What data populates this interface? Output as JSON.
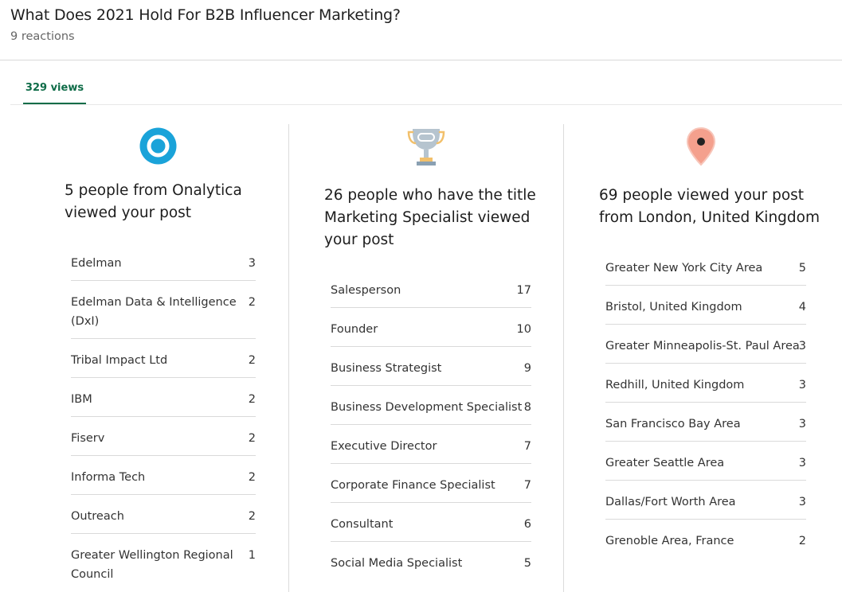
{
  "post": {
    "title": "What Does 2021 Hold For B2B Influencer Marketing?",
    "reactions": "9 reactions"
  },
  "tabs": [
    {
      "label": "329 views",
      "active": true
    }
  ],
  "colors": {
    "accent": "#0f6c48",
    "company_icon": "#1aa3d9",
    "title_icon": "#b6c4cf",
    "location_icon": "#f4a08d"
  },
  "columns": {
    "company": {
      "icon": "company-ring-icon",
      "heading": "5 people from Onalytica viewed your post",
      "heading_lines": [
        "5 people from Onalytica",
        "viewed your post"
      ],
      "rows": [
        {
          "name": "Edelman",
          "count": "3"
        },
        {
          "name": "Edelman Data & Intelligence (DxI)",
          "name_lines": [
            "Edelman Data & Intelligence",
            "(DxI)"
          ],
          "count": "2"
        },
        {
          "name": "Tribal Impact Ltd",
          "count": "2"
        },
        {
          "name": "IBM",
          "count": "2"
        },
        {
          "name": "Fiserv",
          "count": "2"
        },
        {
          "name": "Informa Tech",
          "count": "2"
        },
        {
          "name": "Outreach",
          "count": "2"
        },
        {
          "name": "Greater Wellington Regional Council",
          "name_lines": [
            "Greater Wellington Regional",
            "Council"
          ],
          "count": "1"
        }
      ]
    },
    "job_title": {
      "icon": "trophy-icon",
      "heading": "26 people who have the title Marketing Specialist viewed your post",
      "heading_lines": [
        "26 people who have the title",
        "Marketing Specialist viewed",
        "your post"
      ],
      "rows": [
        {
          "name": "Salesperson",
          "count": "17"
        },
        {
          "name": "Founder",
          "count": "10"
        },
        {
          "name": "Business Strategist",
          "count": "9"
        },
        {
          "name": "Business Development Specialist",
          "count": "8"
        },
        {
          "name": "Executive Director",
          "count": "7"
        },
        {
          "name": "Corporate Finance Specialist",
          "count": "7"
        },
        {
          "name": "Consultant",
          "count": "6"
        },
        {
          "name": "Social Media Specialist",
          "count": "5"
        }
      ]
    },
    "location": {
      "icon": "location-pin-icon",
      "heading": "69 people viewed your post from London, United Kingdom",
      "heading_lines": [
        "69 people viewed your post",
        "from London, United Kingdom"
      ],
      "rows": [
        {
          "name": "Greater New York City Area",
          "count": "5"
        },
        {
          "name": "Bristol, United Kingdom",
          "count": "4"
        },
        {
          "name": "Greater Minneapolis-St. Paul Area",
          "count": "3"
        },
        {
          "name": "Redhill, United Kingdom",
          "count": "3"
        },
        {
          "name": "San Francisco Bay Area",
          "count": "3"
        },
        {
          "name": "Greater Seattle Area",
          "count": "3"
        },
        {
          "name": "Dallas/Fort Worth Area",
          "count": "3"
        },
        {
          "name": "Grenoble Area, France",
          "count": "2"
        }
      ]
    }
  }
}
